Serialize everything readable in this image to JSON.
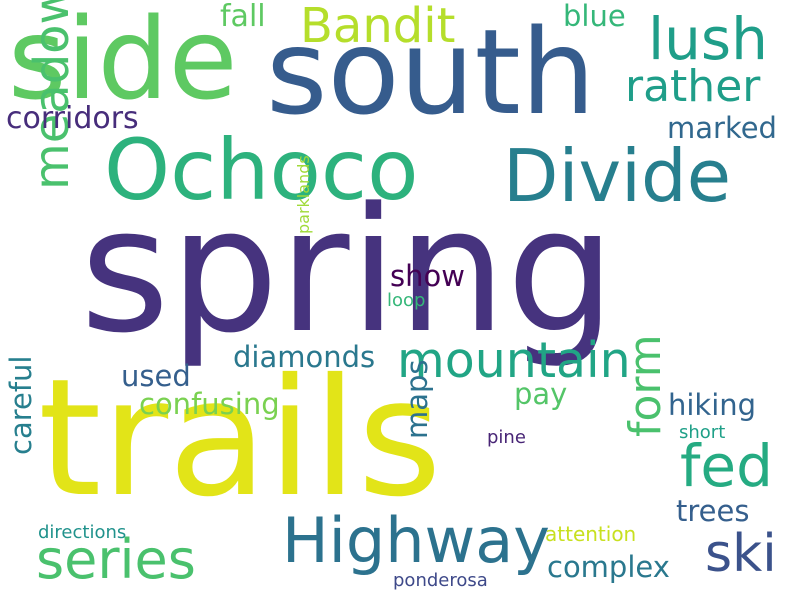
{
  "words": {
    "spring": {
      "text": "spring",
      "color": "#46337e"
    },
    "trails": {
      "text": "trails",
      "color": "#e2e418"
    },
    "south": {
      "text": "south",
      "color": "#365c8d"
    },
    "side": {
      "text": "side",
      "color": "#5ec962"
    },
    "ochoco": {
      "text": "Ochoco",
      "color": "#2db27d"
    },
    "divide": {
      "text": "Divide",
      "color": "#277f8e"
    },
    "highway": {
      "text": "Highway",
      "color": "#2c728e"
    },
    "lush": {
      "text": "lush",
      "color": "#1f9e89"
    },
    "bandit": {
      "text": "Bandit",
      "color": "#b5de2b"
    },
    "rather": {
      "text": "rather",
      "color": "#1f9e89"
    },
    "meadows": {
      "text": "meadows",
      "color": "#4ac16d"
    },
    "mountain": {
      "text": "mountain",
      "color": "#21a585"
    },
    "fed": {
      "text": "fed",
      "color": "#25ab82"
    },
    "series": {
      "text": "series",
      "color": "#4ac16d"
    },
    "form": {
      "text": "form",
      "color": "#4ac16d"
    },
    "ski": {
      "text": "ski",
      "color": "#3b528b"
    },
    "corridors": {
      "text": "corridors",
      "color": "#472d7b"
    },
    "fall": {
      "text": "fall",
      "color": "#5ec962"
    },
    "blue": {
      "text": "blue",
      "color": "#35b779"
    },
    "marked": {
      "text": "marked",
      "color": "#31688e"
    },
    "show": {
      "text": "show",
      "color": "#440154"
    },
    "diamonds": {
      "text": "diamonds",
      "color": "#2a788e"
    },
    "used": {
      "text": "used",
      "color": "#355f8d"
    },
    "confusing": {
      "text": "confusing",
      "color": "#7ad151"
    },
    "pay": {
      "text": "pay",
      "color": "#54c568"
    },
    "hiking": {
      "text": "hiking",
      "color": "#32648e"
    },
    "maps": {
      "text": "maps",
      "color": "#2c728e"
    },
    "careful": {
      "text": "careful",
      "color": "#277f8e"
    },
    "pine": {
      "text": "pine",
      "color": "#482576"
    },
    "short": {
      "text": "short",
      "color": "#1fa088"
    },
    "trees": {
      "text": "trees",
      "color": "#355f8d"
    },
    "complex": {
      "text": "complex",
      "color": "#2a788e"
    },
    "attention": {
      "text": "attention",
      "color": "#c8e020"
    },
    "directions": {
      "text": "directions",
      "color": "#20928c"
    },
    "ponderosa": {
      "text": "ponderosa",
      "color": "#3e4989"
    },
    "parklands": {
      "text": "parklands",
      "color": "#a0da39"
    },
    "loop": {
      "text": "loop",
      "color": "#35b779"
    }
  }
}
